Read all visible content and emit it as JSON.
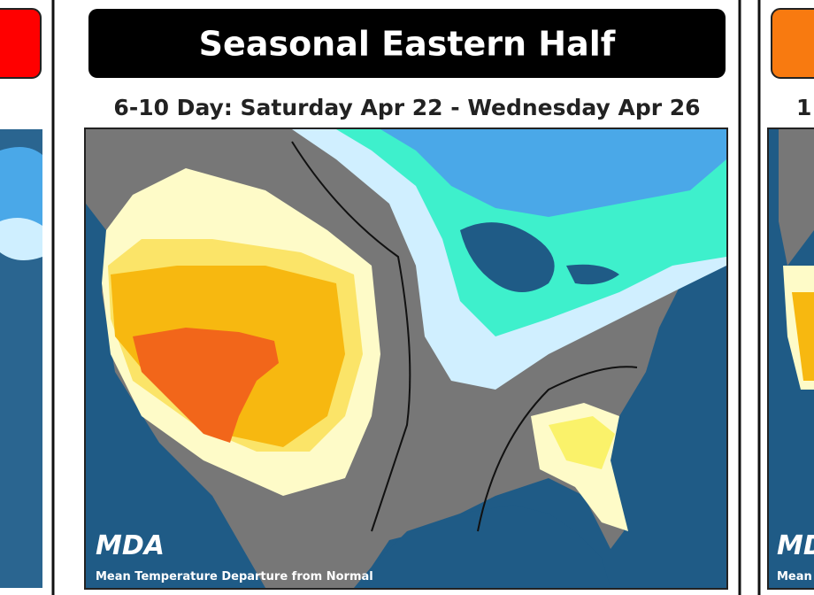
{
  "center_panel": {
    "title": "Seasonal Eastern Half",
    "subtitle": "6-10 Day: Saturday Apr 22 - Wednesday Apr 26",
    "logo": "MDA",
    "caption": "Mean Temperature Departure from Normal"
  },
  "right_panel": {
    "subtitle": "1",
    "logo": "MDA",
    "caption": "Mean"
  }
}
